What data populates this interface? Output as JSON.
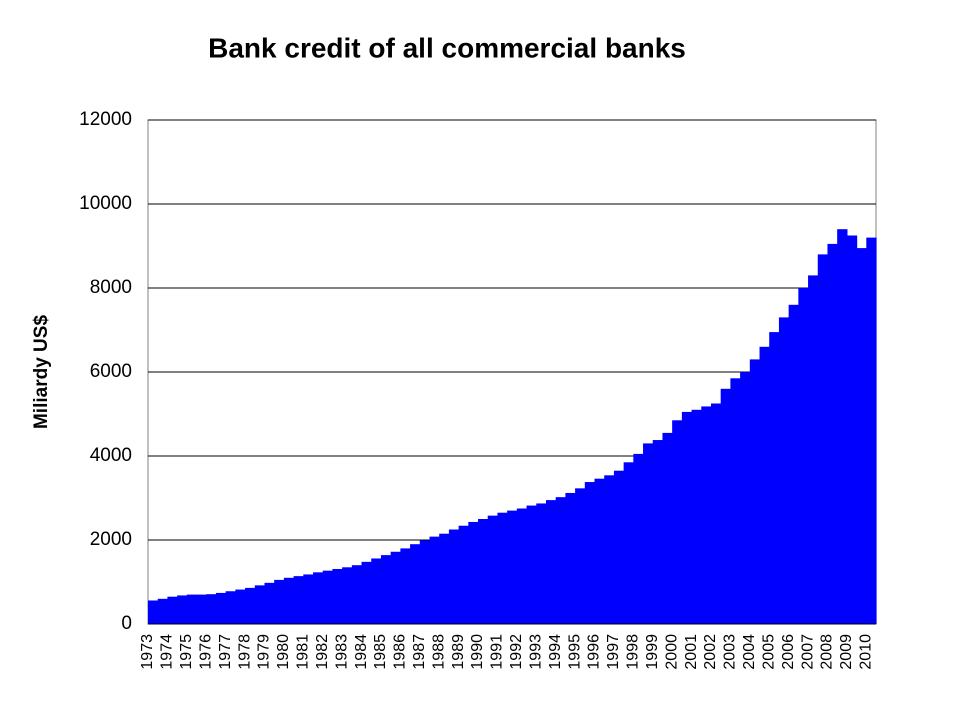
{
  "chart_data": {
    "type": "area-bar",
    "title": "Bank credit of all commercial banks",
    "y_label": "Miliardy US$",
    "color": "#0000ff",
    "grid": true,
    "ylim": [
      0,
      12000
    ],
    "yticks": [
      0,
      2000,
      4000,
      6000,
      8000,
      10000,
      12000
    ],
    "categories": [
      "1973",
      null,
      "1974",
      null,
      "1975",
      null,
      "1976",
      null,
      "1977",
      null,
      "1978",
      null,
      "1979",
      null,
      "1980",
      null,
      "1981",
      null,
      "1982",
      null,
      "1983",
      null,
      "1984",
      null,
      "1985",
      null,
      "1986",
      null,
      "1987",
      null,
      "1988",
      null,
      "1989",
      null,
      "1990",
      null,
      "1991",
      null,
      "1992",
      null,
      "1993",
      null,
      "1994",
      null,
      "1995",
      null,
      "1996",
      null,
      "1997",
      null,
      "1998",
      null,
      "1999",
      null,
      "2000",
      null,
      "2001",
      null,
      "2002",
      null,
      "2003",
      null,
      "2004",
      null,
      "2005",
      null,
      "2006",
      null,
      "2007",
      null,
      "2008",
      null,
      "2009",
      null,
      "2010"
    ],
    "values": [
      560,
      600,
      650,
      680,
      700,
      700,
      710,
      740,
      780,
      820,
      860,
      920,
      980,
      1050,
      1100,
      1140,
      1180,
      1230,
      1270,
      1310,
      1350,
      1400,
      1480,
      1560,
      1640,
      1720,
      1800,
      1900,
      1990,
      2080,
      2150,
      2250,
      2340,
      2430,
      2500,
      2580,
      2650,
      2700,
      2750,
      2820,
      2870,
      2950,
      3020,
      3120,
      3230,
      3380,
      3460,
      3540,
      3650,
      3850,
      4050,
      4300,
      4380,
      4550,
      4850,
      5050,
      5100,
      5180,
      5250,
      5600,
      5850,
      6000,
      6300,
      6600,
      6950,
      7300,
      7600,
      8000,
      8300,
      8800,
      9050,
      9400,
      9250,
      8950,
      9200
    ]
  }
}
